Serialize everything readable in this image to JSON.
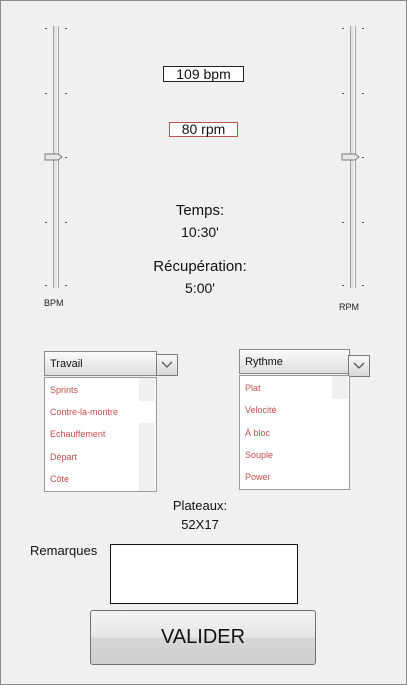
{
  "sliders": {
    "bpm": {
      "label": "BPM",
      "level": 0.5
    },
    "rpm": {
      "label": "RPM",
      "level": 0.5
    }
  },
  "readouts": {
    "bpm": "109 bpm",
    "rpm": "80 rpm"
  },
  "times": {
    "temps_label": "Temps:",
    "temps_value": "10:30'",
    "recup_label": "Récupération:",
    "recup_value": "5:00'"
  },
  "travail": {
    "selected": "Travail",
    "items": [
      "Sprints",
      "Contre-la-montre",
      "Echauffement",
      "Départ",
      "Côte"
    ]
  },
  "rythme": {
    "selected": "Rythme",
    "items": [
      "Plat",
      "Velocité",
      "À bloc",
      "Souple",
      "Power"
    ]
  },
  "plateaux": {
    "label": "Plateaux:",
    "value": "52X17"
  },
  "remarques": {
    "label": "Remarques",
    "value": ""
  },
  "valider": {
    "label": "VALIDER"
  },
  "colors": {
    "background": "#f0f0f0",
    "list_text": "#c0504d",
    "rpm_border": "#c0504d"
  }
}
